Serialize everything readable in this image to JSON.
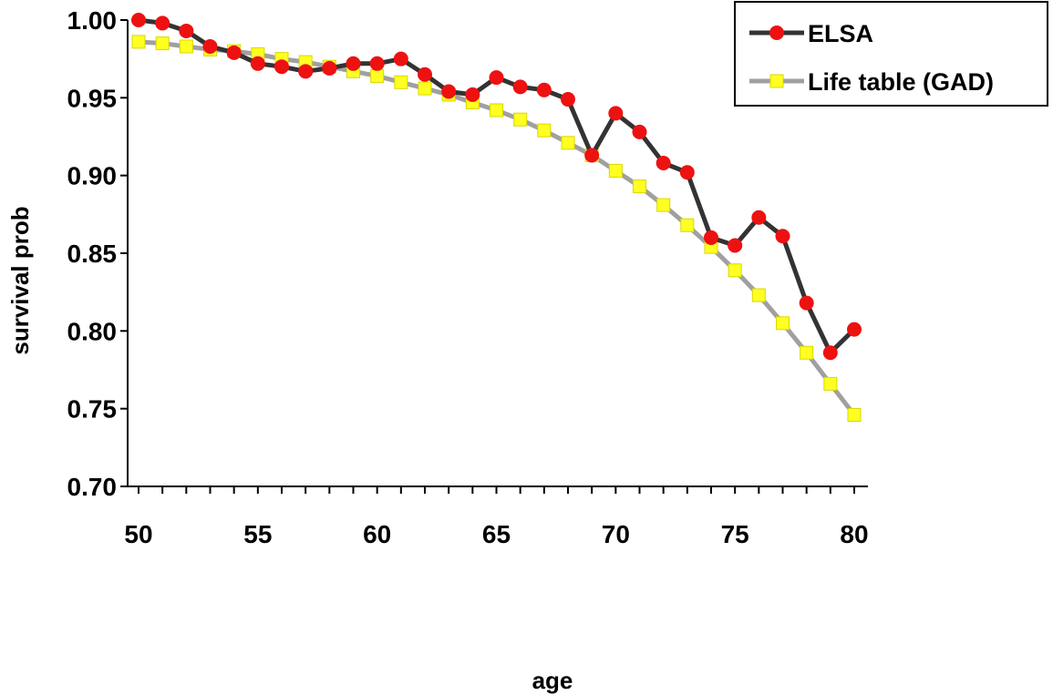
{
  "chart_data": {
    "type": "line",
    "xlabel": "age",
    "ylabel": "survival prob",
    "xlim": [
      50,
      80
    ],
    "ylim": [
      0.7,
      1.0
    ],
    "x_ticks": [
      "50",
      "55",
      "60",
      "65",
      "70",
      "75",
      "80"
    ],
    "y_ticks": [
      "0.70",
      "0.75",
      "0.80",
      "0.85",
      "0.90",
      "0.95",
      "1.00"
    ],
    "grid": false,
    "legend_position": "top-right",
    "x": [
      50,
      51,
      52,
      53,
      54,
      55,
      56,
      57,
      58,
      59,
      60,
      61,
      62,
      63,
      64,
      65,
      66,
      67,
      68,
      69,
      70,
      71,
      72,
      73,
      74,
      75,
      76,
      77,
      78,
      79,
      80
    ],
    "series": [
      {
        "name": "ELSA",
        "color": "#333333",
        "marker_color": "#ee1111",
        "marker": "circle",
        "values": [
          1.0,
          0.998,
          0.993,
          0.983,
          0.979,
          0.972,
          0.97,
          0.967,
          0.969,
          0.972,
          0.972,
          0.975,
          0.965,
          0.954,
          0.952,
          0.963,
          0.957,
          0.955,
          0.949,
          0.913,
          0.94,
          0.928,
          0.908,
          0.902,
          0.86,
          0.855,
          0.873,
          0.861,
          0.818,
          0.786,
          0.801
        ]
      },
      {
        "name": "Life table (GAD)",
        "color": "#a0a0a0",
        "marker_color": "#ffff22",
        "marker": "square",
        "values": [
          0.986,
          0.985,
          0.983,
          0.981,
          0.98,
          0.978,
          0.975,
          0.973,
          0.97,
          0.967,
          0.964,
          0.96,
          0.956,
          0.952,
          0.947,
          0.942,
          0.936,
          0.929,
          0.921,
          0.913,
          0.903,
          0.893,
          0.881,
          0.868,
          0.854,
          0.839,
          0.823,
          0.805,
          0.786,
          0.766,
          0.746
        ]
      }
    ]
  }
}
